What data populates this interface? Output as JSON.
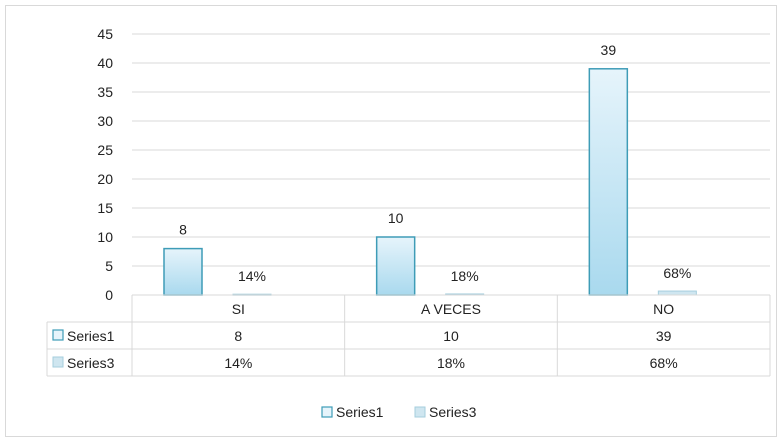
{
  "chart_data": {
    "type": "bar",
    "categories": [
      "SI",
      "A VECES",
      "NO"
    ],
    "series": [
      {
        "name": "Series1",
        "values": [
          8,
          10,
          39
        ],
        "labels": [
          "8",
          "10",
          "39"
        ]
      },
      {
        "name": "Series3",
        "values": [
          0.14,
          0.18,
          0.68
        ],
        "labels": [
          "14%",
          "18%",
          "68%"
        ]
      }
    ],
    "ylim": [
      0,
      45
    ],
    "yticks": [
      "0",
      "5",
      "10",
      "15",
      "20",
      "25",
      "30",
      "35",
      "40",
      "45"
    ],
    "grid": true,
    "data_table": true,
    "legend": "bottom",
    "colors": {
      "series1_fill_top": "#e6f4fb",
      "series1_fill_bottom": "#a9d9ee",
      "series1_stroke": "#3e9cb7",
      "series3_fill": "#cfe6f0",
      "series3_stroke": "#a6cedd",
      "grid": "#d9d9d9",
      "text": "#222222"
    }
  }
}
